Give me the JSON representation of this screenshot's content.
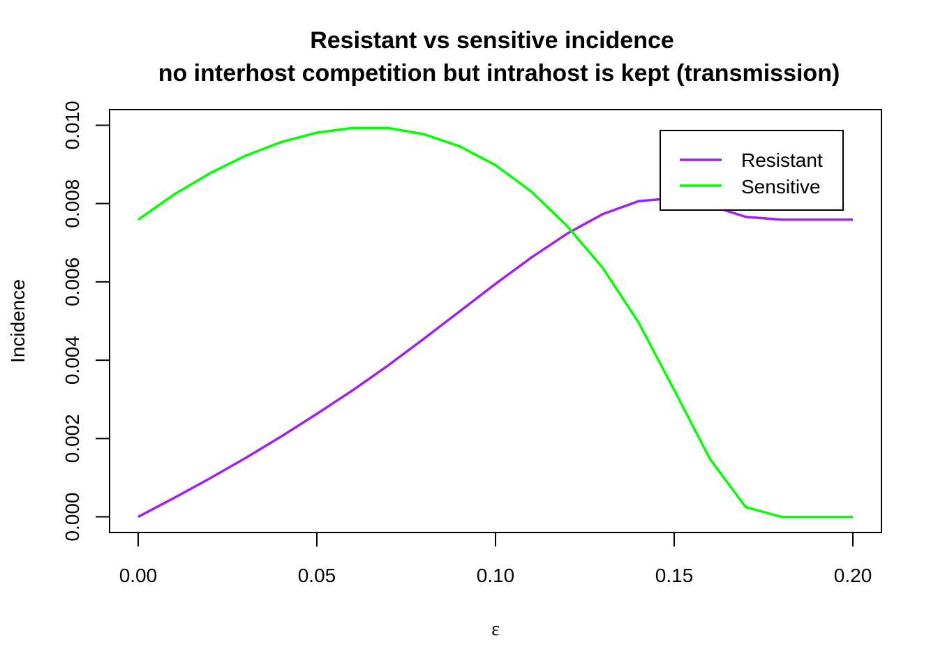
{
  "chart_data": {
    "type": "line",
    "title": "Resistant vs sensitive incidence",
    "subtitle": "no interhost competition but intrahost is kept (transmission)",
    "xlabel": "ε",
    "ylabel": "Incidence",
    "xlim": [
      -0.008,
      0.208
    ],
    "ylim": [
      -0.0004,
      0.0104
    ],
    "xticks": [
      0.0,
      0.05,
      0.1,
      0.15,
      0.2
    ],
    "xtick_labels": [
      "0.00",
      "0.05",
      "0.10",
      "0.15",
      "0.20"
    ],
    "yticks": [
      0.0,
      0.002,
      0.004,
      0.006,
      0.008,
      0.01
    ],
    "ytick_labels": [
      "0.000",
      "0.002",
      "0.004",
      "0.006",
      "0.008",
      "0.010"
    ],
    "grid": false,
    "legend_position": "top-right",
    "x": [
      0.0,
      0.01,
      0.02,
      0.03,
      0.04,
      0.05,
      0.06,
      0.07,
      0.08,
      0.09,
      0.1,
      0.11,
      0.12,
      0.13,
      0.14,
      0.15,
      0.16,
      0.17,
      0.18,
      0.19,
      0.2
    ],
    "series": [
      {
        "name": "Resistant",
        "color": "#a020f0",
        "values": [
          0.0,
          0.00048,
          0.00098,
          0.0015,
          0.00205,
          0.00263,
          0.00323,
          0.00387,
          0.00455,
          0.00525,
          0.00595,
          0.00662,
          0.00723,
          0.00773,
          0.00806,
          0.00814,
          0.00795,
          0.00766,
          0.00759,
          0.00759,
          0.00759
        ]
      },
      {
        "name": "Sensitive",
        "color": "#00ff00",
        "values": [
          0.00759,
          0.00823,
          0.00877,
          0.00922,
          0.00957,
          0.00981,
          0.00993,
          0.00993,
          0.00977,
          0.00946,
          0.00898,
          0.00831,
          0.00743,
          0.00636,
          0.00497,
          0.00324,
          0.00148,
          0.00025,
          0.0,
          0.0,
          0.0
        ]
      }
    ]
  }
}
